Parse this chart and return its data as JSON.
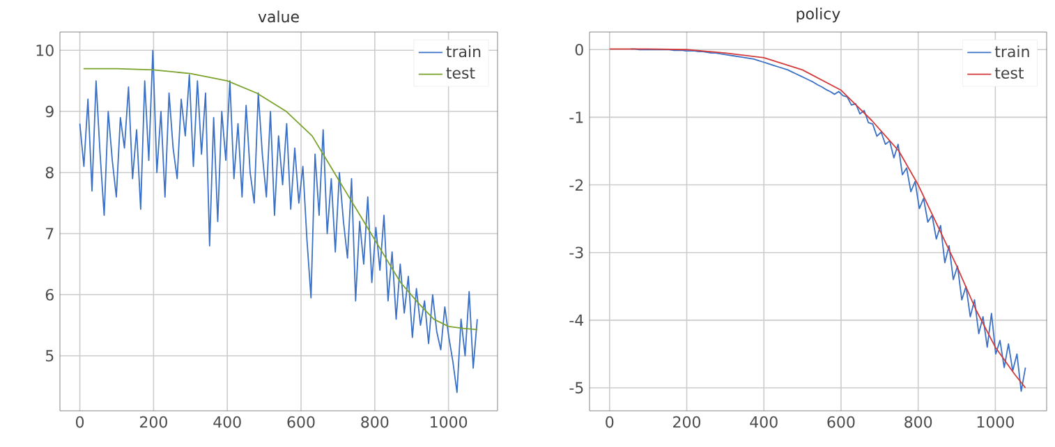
{
  "chart_data": [
    {
      "type": "line",
      "title": "value",
      "xlim": [
        -54,
        1133
      ],
      "ylim": [
        4.1,
        10.3
      ],
      "xticks": [
        0,
        200,
        400,
        600,
        800,
        1000
      ],
      "yticks": [
        5,
        6,
        7,
        8,
        9,
        10
      ],
      "grid": true,
      "legend": "top right",
      "series": [
        {
          "name": "train",
          "color": "#3a70c5",
          "x": [
            0,
            11,
            22,
            33,
            44,
            55,
            66,
            77,
            88,
            99,
            110,
            121,
            132,
            143,
            154,
            165,
            176,
            187,
            198,
            209,
            220,
            231,
            242,
            253,
            264,
            275,
            286,
            297,
            308,
            319,
            330,
            341,
            352,
            363,
            374,
            385,
            396,
            407,
            418,
            429,
            440,
            451,
            462,
            473,
            484,
            495,
            506,
            517,
            528,
            539,
            550,
            561,
            572,
            583,
            594,
            605,
            616,
            627,
            638,
            649,
            660,
            671,
            682,
            693,
            704,
            715,
            726,
            737,
            748,
            759,
            770,
            781,
            792,
            803,
            814,
            825,
            836,
            847,
            858,
            869,
            880,
            891,
            902,
            913,
            924,
            935,
            946,
            957,
            968,
            979,
            990,
            1001,
            1012,
            1023,
            1034,
            1045,
            1056,
            1067,
            1078
          ],
          "values": [
            8.8,
            8.1,
            9.2,
            7.7,
            9.5,
            8.3,
            7.3,
            9.0,
            8.2,
            7.6,
            8.9,
            8.4,
            9.4,
            7.9,
            8.7,
            7.4,
            9.5,
            8.2,
            10.0,
            8.0,
            9.0,
            7.6,
            9.3,
            8.4,
            7.9,
            9.2,
            8.6,
            9.6,
            8.1,
            9.5,
            8.3,
            9.3,
            6.8,
            8.9,
            7.2,
            9.0,
            8.2,
            9.5,
            7.9,
            8.8,
            7.6,
            9.1,
            8.0,
            7.5,
            9.3,
            8.3,
            7.6,
            9.0,
            7.3,
            8.6,
            7.8,
            8.8,
            7.4,
            8.4,
            7.5,
            8.1,
            6.9,
            5.95,
            8.3,
            7.3,
            8.7,
            7.0,
            7.9,
            6.7,
            8.0,
            7.2,
            6.6,
            7.9,
            5.9,
            7.2,
            6.5,
            7.6,
            6.2,
            7.1,
            6.4,
            7.3,
            5.9,
            6.7,
            5.6,
            6.5,
            5.7,
            6.3,
            5.3,
            6.1,
            5.5,
            5.9,
            5.2,
            6.0,
            5.4,
            5.1,
            5.8,
            5.3,
            4.9,
            4.4,
            5.6,
            5.0,
            6.05,
            4.8,
            5.6
          ]
        },
        {
          "name": "test",
          "color": "#7aa22c",
          "x": [
            10,
            100,
            200,
            300,
            400,
            480,
            560,
            630,
            670,
            720,
            770,
            820,
            870,
            920,
            960,
            1000,
            1040,
            1078
          ],
          "values": [
            9.7,
            9.7,
            9.68,
            9.62,
            9.5,
            9.3,
            9.0,
            8.6,
            8.2,
            7.7,
            7.2,
            6.7,
            6.2,
            5.85,
            5.6,
            5.48,
            5.45,
            5.43
          ]
        }
      ]
    },
    {
      "type": "line",
      "title": "policy",
      "xlim": [
        -52,
        1133
      ],
      "ylim": [
        -5.34,
        0.26
      ],
      "xticks": [
        0,
        200,
        400,
        600,
        800,
        1000
      ],
      "yticks": [
        -5,
        -4,
        -3,
        -2,
        -1,
        0
      ],
      "grid": true,
      "legend": "top right",
      "series": [
        {
          "name": "train",
          "color": "#3a70c5",
          "x": [
            55,
            66,
            77,
            88,
            99,
            110,
            121,
            132,
            143,
            154,
            165,
            176,
            187,
            198,
            209,
            220,
            231,
            242,
            253,
            264,
            275,
            286,
            297,
            308,
            319,
            330,
            341,
            352,
            363,
            374,
            385,
            396,
            407,
            418,
            429,
            440,
            451,
            462,
            473,
            484,
            495,
            506,
            517,
            528,
            539,
            550,
            561,
            572,
            583,
            594,
            605,
            616,
            627,
            638,
            649,
            660,
            671,
            682,
            693,
            704,
            715,
            726,
            737,
            748,
            759,
            770,
            781,
            792,
            803,
            814,
            825,
            836,
            847,
            858,
            869,
            880,
            891,
            902,
            913,
            924,
            935,
            946,
            957,
            968,
            979,
            990,
            1001,
            1012,
            1023,
            1034,
            1045,
            1056,
            1067,
            1078
          ],
          "values": [
            0.01,
            0.01,
            0.0,
            0.0,
            0.0,
            0.0,
            0.0,
            0.0,
            0.0,
            0.0,
            -0.01,
            -0.01,
            -0.01,
            -0.02,
            -0.02,
            -0.02,
            -0.03,
            -0.03,
            -0.04,
            -0.05,
            -0.05,
            -0.06,
            -0.07,
            -0.08,
            -0.09,
            -0.1,
            -0.11,
            -0.12,
            -0.13,
            -0.14,
            -0.16,
            -0.18,
            -0.2,
            -0.22,
            -0.24,
            -0.26,
            -0.28,
            -0.3,
            -0.33,
            -0.36,
            -0.39,
            -0.42,
            -0.45,
            -0.48,
            -0.52,
            -0.55,
            -0.59,
            -0.62,
            -0.66,
            -0.62,
            -0.68,
            -0.7,
            -0.82,
            -0.8,
            -0.95,
            -0.9,
            -1.08,
            -1.1,
            -1.28,
            -1.22,
            -1.4,
            -1.35,
            -1.6,
            -1.4,
            -1.85,
            -1.75,
            -2.1,
            -1.95,
            -2.35,
            -2.2,
            -2.55,
            -2.45,
            -2.8,
            -2.6,
            -3.15,
            -2.9,
            -3.4,
            -3.2,
            -3.7,
            -3.5,
            -3.95,
            -3.7,
            -4.2,
            -3.95,
            -4.4,
            -3.9,
            -4.5,
            -4.3,
            -4.7,
            -4.35,
            -4.75,
            -4.5,
            -5.05,
            -4.7
          ]
        },
        {
          "name": "test",
          "color": "#d33a3a",
          "x": [
            0,
            100,
            200,
            300,
            400,
            500,
            600,
            680,
            750,
            800,
            850,
            900,
            950,
            1000,
            1050,
            1078
          ],
          "values": [
            0.01,
            0.01,
            0.0,
            -0.05,
            -0.12,
            -0.3,
            -0.6,
            -1.05,
            -1.5,
            -2.0,
            -2.6,
            -3.2,
            -3.85,
            -4.4,
            -4.8,
            -5.0
          ]
        }
      ]
    }
  ]
}
